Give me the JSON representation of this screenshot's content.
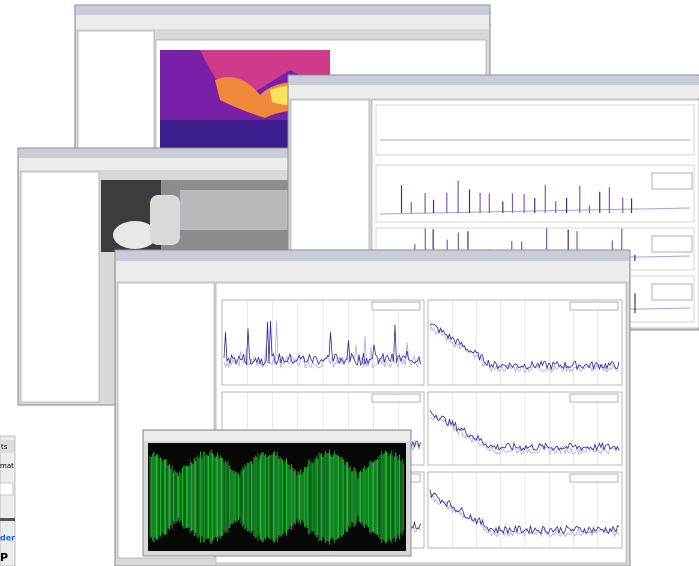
{
  "fragments": {
    "tab": "ts",
    "menu": "mat",
    "link": "der",
    "heading": "P"
  }
}
